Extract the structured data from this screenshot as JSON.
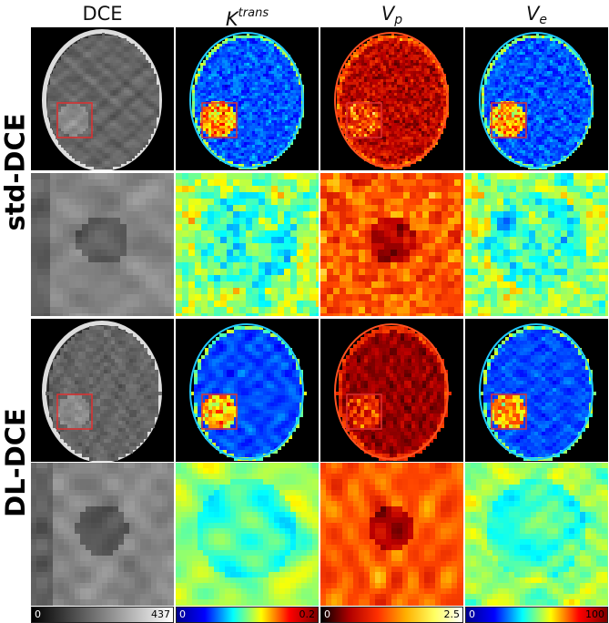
{
  "columns": [
    {
      "label": "DCE",
      "sup": "",
      "sub": "",
      "colormap": "gray"
    },
    {
      "label": "K",
      "sup": "trans",
      "sub": "",
      "colormap": "jet"
    },
    {
      "label": "V",
      "sup": "",
      "sub": "p",
      "colormap": "hot"
    },
    {
      "label": "V",
      "sup": "",
      "sub": "e",
      "colormap": "jet"
    }
  ],
  "rows": [
    {
      "label": "std-DCE"
    },
    {
      "label": "DL-DCE"
    }
  ],
  "colorbars": [
    {
      "min": "0",
      "max": "437",
      "colormap": "gray"
    },
    {
      "min": "0",
      "max": "0.2",
      "colormap": "jet"
    },
    {
      "min": "0",
      "max": "2.5",
      "colormap": "hot"
    },
    {
      "min": "0",
      "max": "100",
      "colormap": "jet"
    }
  ],
  "roi_color": "#e03030"
}
